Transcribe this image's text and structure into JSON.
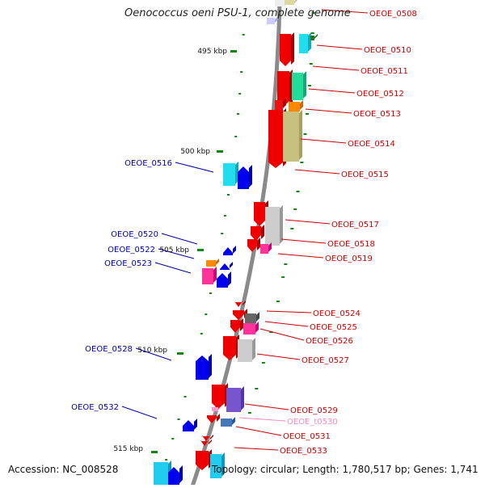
{
  "title": "Oenococcus oeni PSU-1, complete genome",
  "accession": "Accession: NC_008528",
  "summary": "Topology: circular; Length: 1,780,517 bp; Genes: 1,741",
  "colors": {
    "right_label": "#cc0000",
    "left_label": "#0000aa",
    "trna_label": "#ff88c8",
    "backbone": "#8a8a8a",
    "tick": "#118811"
  },
  "ruler": {
    "ticks": [
      {
        "label": "495 kbp",
        "kbp": 495
      },
      {
        "label": "500 kbp",
        "kbp": 500
      },
      {
        "label": "505 kbp",
        "kbp": 505
      },
      {
        "label": "510 kbp",
        "kbp": 510
      },
      {
        "label": "515 kbp",
        "kbp": 515
      }
    ]
  },
  "genes": {
    "right": [
      {
        "label": "OEOE_0508"
      },
      {
        "label": "OEOE_0510"
      },
      {
        "label": "OEOE_0511"
      },
      {
        "label": "OEOE_0512"
      },
      {
        "label": "OEOE_0513"
      },
      {
        "label": "OEOE_0514"
      },
      {
        "label": "OEOE_0515"
      },
      {
        "label": "OEOE_0517"
      },
      {
        "label": "OEOE_0518"
      },
      {
        "label": "OEOE_0519"
      },
      {
        "label": "OEOE_0524"
      },
      {
        "label": "OEOE_0525"
      },
      {
        "label": "OEOE_0526"
      },
      {
        "label": "OEOE_0527"
      },
      {
        "label": "OEOE_0529"
      },
      {
        "label": "OEOE_t0530"
      },
      {
        "label": "OEOE_0531"
      },
      {
        "label": "OEOE_0533"
      }
    ],
    "left": [
      {
        "label": "OEOE_0516"
      },
      {
        "label": "OEOE_0520"
      },
      {
        "label": "OEOE_0522"
      },
      {
        "label": "OEOE_0523"
      },
      {
        "label": "OEOE_0528"
      },
      {
        "label": "OEOE_0532"
      }
    ]
  }
}
